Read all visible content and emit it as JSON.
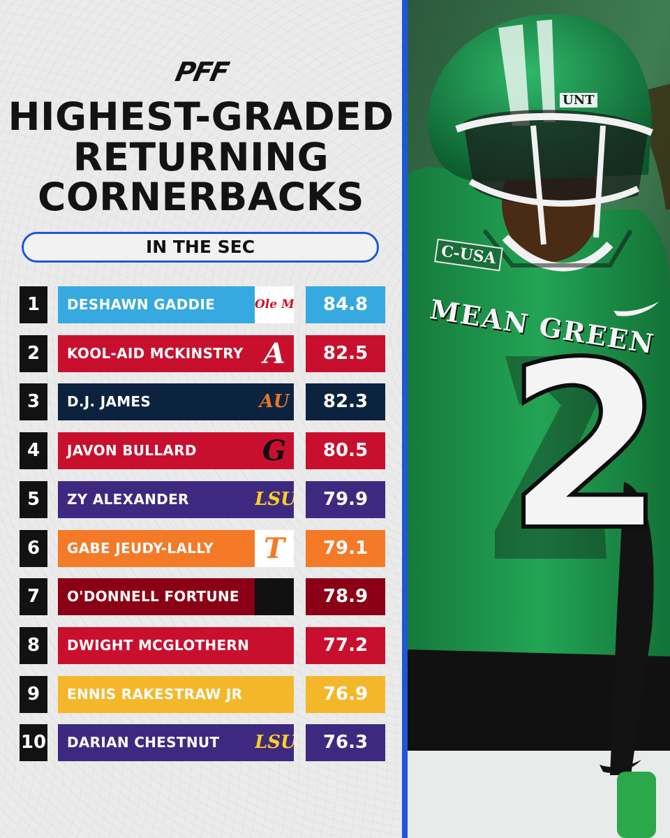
{
  "brand": {
    "logo_text": "PFF"
  },
  "title_lines": [
    "HIGHEST-GRADED",
    "RETURNING",
    "CORNERBACKS"
  ],
  "subtitle": "IN THE SEC",
  "players": [
    {
      "rank": "1",
      "name": "DESHAWN GADDIE",
      "grade": "84.8",
      "team_logo": "ole-miss-logo",
      "logo_text": "Ole Miss",
      "bar_color": "#35a9e0",
      "logo_bg": "#ffffff",
      "logo_color": "#ce1126"
    },
    {
      "rank": "2",
      "name": "KOOL-AID MCKINSTRY",
      "grade": "82.5",
      "team_logo": "alabama-logo",
      "logo_text": "A",
      "bar_color": "#c8102e",
      "logo_bg": "#c8102e",
      "logo_color": "#ffffff"
    },
    {
      "rank": "3",
      "name": "D.J. JAMES",
      "grade": "82.3",
      "team_logo": "auburn-logo",
      "logo_text": "AU",
      "bar_color": "#0c2340",
      "logo_bg": "#0c2340",
      "logo_color": "#e87722"
    },
    {
      "rank": "4",
      "name": "JAVON BULLARD",
      "grade": "80.5",
      "team_logo": "georgia-logo",
      "logo_text": "G",
      "bar_color": "#c8102e",
      "logo_bg": "#c8102e",
      "logo_color": "#111111"
    },
    {
      "rank": "5",
      "name": "ZY ALEXANDER",
      "grade": "79.9",
      "team_logo": "lsu-logo",
      "logo_text": "LSU",
      "bar_color": "#3d2a80",
      "logo_bg": "#3d2a80",
      "logo_color": "#fdd023"
    },
    {
      "rank": "6",
      "name": "GABE JEUDY-LALLY",
      "grade": "79.1",
      "team_logo": "tennessee-logo",
      "logo_text": "T",
      "bar_color": "#f47a28",
      "logo_bg": "#ffffff",
      "logo_color": "#f47a28"
    },
    {
      "rank": "7",
      "name": "O'DONNELL FORTUNE",
      "grade": "78.9",
      "team_logo": "south-carolina-logo",
      "logo_text": "",
      "bar_color": "#8b0015",
      "logo_bg": "#111111",
      "logo_color": "#ffffff"
    },
    {
      "rank": "8",
      "name": "DWIGHT MCGLOTHERN",
      "grade": "77.2",
      "team_logo": "arkansas-logo",
      "logo_text": "",
      "bar_color": "#c8102e",
      "logo_bg": "#c8102e",
      "logo_color": "#ffffff"
    },
    {
      "rank": "9",
      "name": "ENNIS RAKESTRAW JR",
      "grade": "76.9",
      "team_logo": "missouri-logo",
      "logo_text": "",
      "bar_color": "#f5b72a",
      "logo_bg": "#f5b72a",
      "logo_color": "#111111"
    },
    {
      "rank": "10",
      "name": "DARIAN CHESTNUT",
      "grade": "76.3",
      "team_logo": "lsu-logo",
      "logo_text": "LSU",
      "bar_color": "#3d2a80",
      "logo_bg": "#3d2a80",
      "logo_color": "#fdd023"
    }
  ],
  "photo": {
    "subject": "football-player-photo",
    "jersey_text": "MEAN GREEN",
    "jersey_number": "2",
    "helmet_text": "UNT",
    "patch_text": "C-USA",
    "jersey_color": "#1f8f4a"
  },
  "colors": {
    "accent": "#1d57d8",
    "rank_bg": "#121212",
    "background": "#ebebec"
  }
}
